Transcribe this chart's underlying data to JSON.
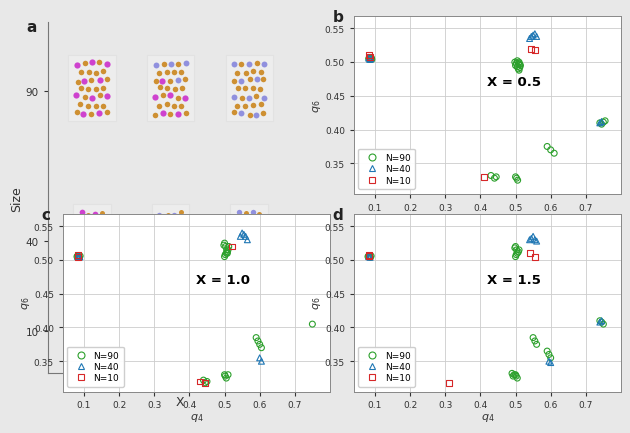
{
  "panel_b": {
    "title": "X = 0.5",
    "n90_q4": [
      0.082,
      0.084,
      0.086,
      0.088,
      0.09,
      0.091,
      0.505,
      0.508,
      0.51,
      0.512,
      0.5,
      0.502,
      0.498,
      0.505,
      0.508,
      0.51,
      0.512,
      0.514,
      0.5,
      0.503,
      0.506,
      0.43,
      0.44,
      0.445,
      0.59,
      0.6,
      0.61,
      0.74,
      0.745,
      0.75,
      0.755
    ],
    "n90_q6": [
      0.505,
      0.506,
      0.504,
      0.505,
      0.506,
      0.504,
      0.493,
      0.49,
      0.488,
      0.492,
      0.495,
      0.498,
      0.5,
      0.502,
      0.498,
      0.5,
      0.497,
      0.495,
      0.33,
      0.328,
      0.325,
      0.332,
      0.328,
      0.33,
      0.375,
      0.37,
      0.365,
      0.41,
      0.408,
      0.411,
      0.413
    ],
    "n40_q4": [
      0.082,
      0.085,
      0.088,
      0.54,
      0.545,
      0.55,
      0.555,
      0.56,
      0.74,
      0.745
    ],
    "n40_q6": [
      0.506,
      0.504,
      0.505,
      0.535,
      0.538,
      0.54,
      0.542,
      0.538,
      0.41,
      0.412
    ],
    "n10_q4": [
      0.082,
      0.085,
      0.41,
      0.545,
      0.555
    ],
    "n10_q6": [
      0.51,
      0.508,
      0.33,
      0.52,
      0.518
    ]
  },
  "panel_c": {
    "title": "X = 1.0",
    "n90_q4": [
      0.08,
      0.082,
      0.085,
      0.087,
      0.089,
      0.5,
      0.502,
      0.505,
      0.508,
      0.51,
      0.512,
      0.498,
      0.5,
      0.503,
      0.506,
      0.508,
      0.44,
      0.445,
      0.45,
      0.5,
      0.502,
      0.505,
      0.51,
      0.59,
      0.595,
      0.6,
      0.605,
      0.75
    ],
    "n90_q6": [
      0.505,
      0.506,
      0.505,
      0.504,
      0.506,
      0.505,
      0.508,
      0.51,
      0.512,
      0.515,
      0.52,
      0.522,
      0.525,
      0.52,
      0.515,
      0.51,
      0.322,
      0.318,
      0.32,
      0.33,
      0.328,
      0.325,
      0.33,
      0.385,
      0.38,
      0.375,
      0.37,
      0.405
    ],
    "n40_q4": [
      0.082,
      0.084,
      0.086,
      0.088,
      0.545,
      0.55,
      0.555,
      0.56,
      0.565,
      0.6,
      0.605
    ],
    "n40_q6": [
      0.505,
      0.506,
      0.504,
      0.505,
      0.535,
      0.54,
      0.538,
      0.535,
      0.53,
      0.355,
      0.35
    ],
    "n10_q4": [
      0.082,
      0.084,
      0.43,
      0.445,
      0.52
    ],
    "n10_q6": [
      0.505,
      0.508,
      0.32,
      0.318,
      0.52
    ]
  },
  "panel_d": {
    "title": "X = 1.5",
    "n90_q4": [
      0.08,
      0.082,
      0.085,
      0.087,
      0.089,
      0.5,
      0.502,
      0.505,
      0.508,
      0.51,
      0.498,
      0.5,
      0.503,
      0.5,
      0.502,
      0.505,
      0.49,
      0.493,
      0.496,
      0.55,
      0.555,
      0.56,
      0.59,
      0.595,
      0.6,
      0.74,
      0.745,
      0.75
    ],
    "n90_q6": [
      0.505,
      0.506,
      0.505,
      0.504,
      0.506,
      0.505,
      0.508,
      0.51,
      0.512,
      0.515,
      0.518,
      0.52,
      0.515,
      0.33,
      0.328,
      0.325,
      0.332,
      0.328,
      0.33,
      0.385,
      0.38,
      0.375,
      0.365,
      0.36,
      0.355,
      0.41,
      0.408,
      0.405
    ],
    "n40_q4": [
      0.082,
      0.084,
      0.086,
      0.54,
      0.545,
      0.55,
      0.555,
      0.56,
      0.595,
      0.6,
      0.74,
      0.745
    ],
    "n40_q6": [
      0.505,
      0.505,
      0.504,
      0.53,
      0.532,
      0.535,
      0.53,
      0.528,
      0.35,
      0.348,
      0.408,
      0.41
    ],
    "n10_q4": [
      0.082,
      0.084,
      0.31,
      0.54,
      0.555
    ],
    "n10_q6": [
      0.508,
      0.506,
      0.318,
      0.51,
      0.505
    ]
  },
  "colors": {
    "n90": "#2ca02c",
    "n40": "#1f77b4",
    "n10": "#d62728"
  },
  "mg_color": "#CC8822",
  "bi_color": "#CC33CC",
  "sb_color": "#8888DD",
  "bg_color": "#e8e8e8",
  "plot_bg": "#ffffff",
  "xlim": [
    0.04,
    0.8
  ],
  "ylim": [
    0.305,
    0.568
  ],
  "xticks": [
    0.1,
    0.2,
    0.3,
    0.4,
    0.5,
    0.6,
    0.7
  ],
  "yticks": [
    0.35,
    0.4,
    0.45,
    0.5,
    0.55
  ],
  "xlabel": "q_4",
  "ylabel": "q_6"
}
